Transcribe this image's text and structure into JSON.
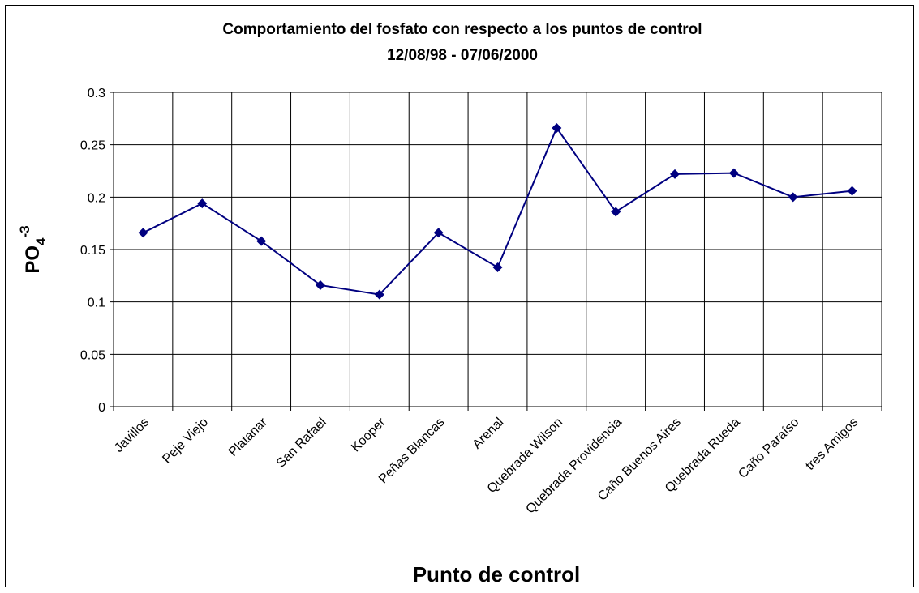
{
  "chart_data": {
    "type": "line",
    "title": [
      "Comportamiento del fosfato con respecto a los puntos de control",
      "12/08/98 - 07/06/2000"
    ],
    "x_label": "Punto de control",
    "y_label": {
      "base": "PO",
      "sub": "4",
      "sup": "-3"
    },
    "categories": [
      "Javillos",
      "Peje Viejo",
      "Platanar",
      "San Rafael",
      "Kooper",
      "Peñas Blancas",
      "Arenal",
      "Quebrada Wilson",
      "Quebrada Providencia",
      "Caño Buenos Aires",
      "Quebrada Rueda",
      "Caño Paraíso",
      "tres Amigos"
    ],
    "series": [
      {
        "color": "#000080",
        "values": [
          0.166,
          0.194,
          0.158,
          0.116,
          0.107,
          0.166,
          0.133,
          0.266,
          0.186,
          0.222,
          0.223,
          0.2,
          0.206
        ]
      }
    ],
    "ylim": [
      0,
      0.3
    ],
    "yticks": [
      0,
      0.05,
      0.1,
      0.15,
      0.2,
      0.25,
      0.3
    ],
    "grid": true
  }
}
